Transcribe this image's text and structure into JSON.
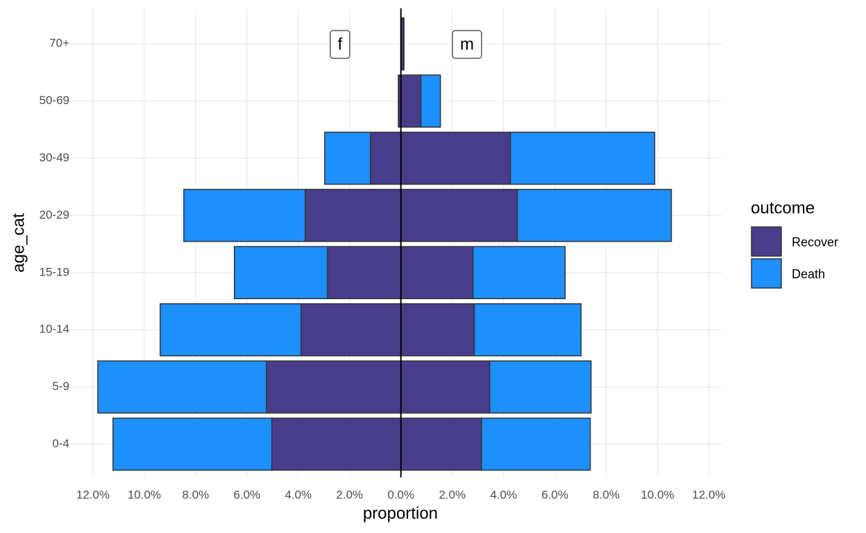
{
  "chart_data": {
    "type": "pyramid",
    "x_label": "proportion",
    "y_label": "age_cat",
    "legend_title": "outcome",
    "categories": [
      "0-4",
      "5-9",
      "10-14",
      "15-19",
      "20-29",
      "30-49",
      "50-69",
      "70+"
    ],
    "groups": [
      "f",
      "m"
    ],
    "series": [
      {
        "name": "Recover",
        "color": "#483D8B",
        "values": [
          [
            -5.03,
            -5.24,
            -3.89,
            -2.86,
            -3.73,
            -1.19,
            -0.08,
            0
          ],
          [
            3.14,
            3.46,
            2.86,
            2.81,
            4.54,
            4.27,
            0.78,
            0.1
          ]
        ]
      },
      {
        "name": "Death",
        "color": "#1E90FF",
        "values": [
          [
            -6.19,
            -6.57,
            -5.49,
            -3.63,
            -4.73,
            -1.78,
            -0.02,
            0
          ],
          [
            4.24,
            3.95,
            4.16,
            3.59,
            6.0,
            5.62,
            0.76,
            0.02
          ]
        ]
      }
    ],
    "xlim": [
      -13,
      12.5
    ],
    "xticks": [
      {
        "value": -12,
        "label": "12.0%"
      },
      {
        "value": -10,
        "label": "10.0%"
      },
      {
        "value": -8,
        "label": "8.0%"
      },
      {
        "value": -6,
        "label": "6.0%"
      },
      {
        "value": -4,
        "label": "4.0%"
      },
      {
        "value": -2,
        "label": "2.0%"
      },
      {
        "value": 0,
        "label": "0.0%"
      },
      {
        "value": 2,
        "label": "2.0%"
      },
      {
        "value": 4,
        "label": "4.0%"
      },
      {
        "value": 6,
        "label": "6.0%"
      },
      {
        "value": 8,
        "label": "8.0%"
      },
      {
        "value": 10,
        "label": "10.0%"
      },
      {
        "value": 12,
        "label": "12.0%"
      }
    ],
    "grid": true
  }
}
